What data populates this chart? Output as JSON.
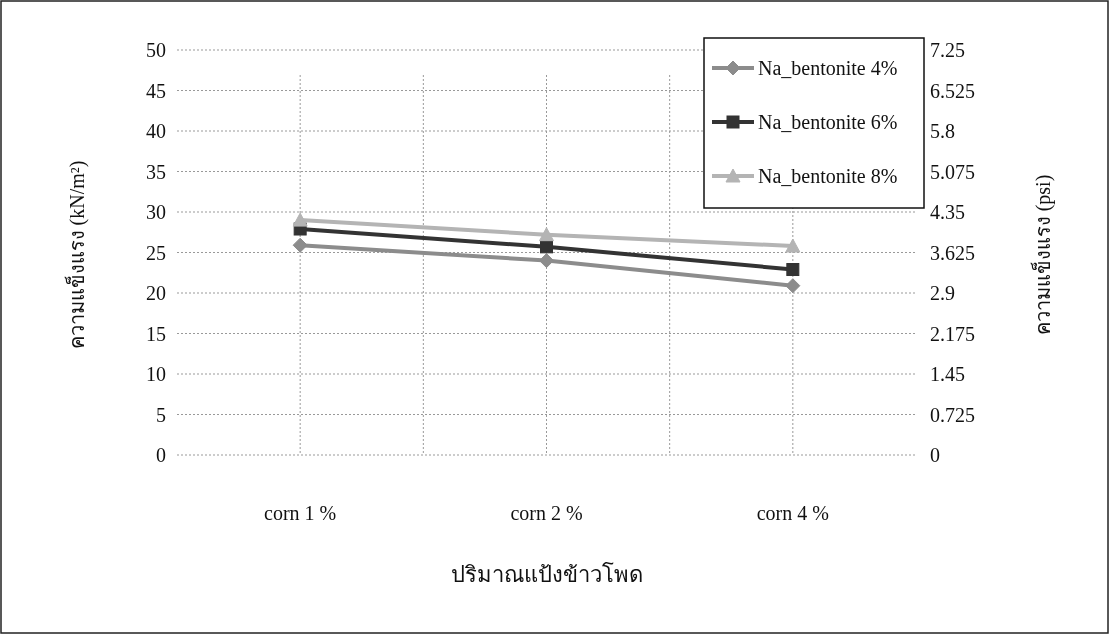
{
  "chart_data": {
    "type": "line",
    "categories": [
      "corn 1 %",
      "corn 2 %",
      "corn 4 %"
    ],
    "series": [
      {
        "name": "Na_bentonite 4%",
        "color": "#8c8c8c",
        "marker": "diamond",
        "values": [
          25.9,
          24.0,
          20.9
        ]
      },
      {
        "name": "Na_bentonite 6%",
        "color": "#333333",
        "marker": "square",
        "values": [
          27.9,
          25.7,
          22.9
        ]
      },
      {
        "name": "Na_bentonite 8%",
        "color": "#b4b4b4",
        "marker": "triangle",
        "values": [
          29.0,
          27.2,
          25.8
        ]
      }
    ],
    "xlabel": "ปริมาณแป้งข้าวโพด",
    "ylabel": "ความแข็งแรง (kN/m²)",
    "y2label": "ความแข็งแรง (psi)",
    "ylim": [
      0,
      50
    ],
    "yticks": [
      0,
      5,
      10,
      15,
      20,
      25,
      30,
      35,
      40,
      45,
      50
    ],
    "y2lim": [
      0,
      7.25
    ],
    "y2ticks": [
      0,
      0.725,
      1.45,
      2.175,
      2.9,
      3.625,
      4.35,
      5.075,
      5.8,
      6.525,
      7.25
    ],
    "grid": true,
    "legend": "top right",
    "line_style": "solid"
  }
}
